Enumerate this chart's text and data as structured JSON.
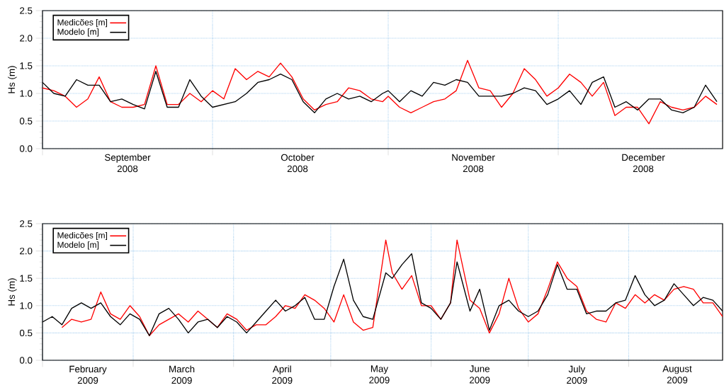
{
  "chart_data": [
    {
      "type": "line",
      "ylabel": "Hs (m)",
      "grid": true,
      "legend": "top left",
      "xlim": [
        "2008-09-01",
        "2008-12-30"
      ],
      "ylim": [
        0,
        2.5
      ],
      "yticks": [
        {
          "value": 0,
          "label": "0.0"
        },
        0.5,
        {
          "value": 1,
          "label": "1.0"
        },
        1.5,
        {
          "value": 2,
          "label": "2.0"
        },
        2.5
      ],
      "xticks": [
        {
          "value": "2008-09-01",
          "label": null
        },
        {
          "value": "2008-09-16",
          "label": "September 2008"
        },
        {
          "value": "2008-10-01",
          "label": null
        },
        {
          "value": "2008-10-16",
          "label": "October 2008"
        },
        {
          "value": "2008-11-01",
          "label": null
        },
        {
          "value": "2008-11-16",
          "label": "November 2008"
        },
        {
          "value": "2008-12-01",
          "label": null
        },
        {
          "value": "2008-12-16",
          "label": "December 2008"
        }
      ],
      "x": [
        "2008-09-01",
        "2008-09-03",
        "2008-09-05",
        "2008-09-07",
        "2008-09-09",
        "2008-09-11",
        "2008-09-13",
        "2008-09-15",
        "2008-09-17",
        "2008-09-19",
        "2008-09-21",
        "2008-09-23",
        "2008-09-25",
        "2008-09-27",
        "2008-09-29",
        "2008-10-01",
        "2008-10-03",
        "2008-10-05",
        "2008-10-07",
        "2008-10-09",
        "2008-10-11",
        "2008-10-13",
        "2008-10-15",
        "2008-10-17",
        "2008-10-19",
        "2008-10-21",
        "2008-10-23",
        "2008-10-25",
        "2008-10-27",
        "2008-10-29",
        "2008-10-31",
        "2008-11-01",
        "2008-11-03",
        "2008-11-05",
        "2008-11-07",
        "2008-11-09",
        "2008-11-11",
        "2008-11-13",
        "2008-11-15",
        "2008-11-17",
        "2008-11-19",
        "2008-11-21",
        "2008-11-23",
        "2008-11-25",
        "2008-11-27",
        "2008-11-29",
        "2008-12-01",
        "2008-12-03",
        "2008-12-05",
        "2008-12-07",
        "2008-12-09",
        "2008-12-11",
        "2008-12-13",
        "2008-12-15",
        "2008-12-17",
        "2008-12-19",
        "2008-12-21",
        "2008-12-23",
        "2008-12-25",
        "2008-12-27",
        "2008-12-29"
      ],
      "series": [
        {
          "name": "Medicões [m]",
          "color": "#ff0000",
          "values": [
            1.1,
            1.05,
            0.95,
            0.75,
            0.9,
            1.3,
            0.85,
            0.75,
            0.75,
            0.8,
            1.5,
            0.8,
            0.8,
            1.0,
            0.85,
            1.05,
            0.9,
            1.45,
            1.25,
            1.4,
            1.3,
            1.55,
            1.3,
            0.9,
            0.7,
            0.8,
            0.85,
            1.1,
            1.05,
            0.9,
            0.85,
            0.95,
            0.75,
            0.65,
            0.75,
            0.85,
            0.9,
            1.05,
            1.6,
            1.1,
            1.05,
            0.75,
            1.0,
            1.45,
            1.25,
            0.95,
            1.1,
            1.35,
            1.2,
            0.95,
            1.2,
            0.6,
            0.75,
            0.75,
            0.45,
            0.85,
            0.75,
            0.7,
            0.75,
            0.95,
            0.8
          ]
        },
        {
          "name": "Modelo [m]",
          "color": "#000000",
          "values": [
            1.2,
            1.0,
            0.95,
            1.25,
            1.15,
            1.15,
            0.85,
            0.9,
            0.8,
            0.72,
            1.4,
            0.75,
            0.75,
            1.25,
            0.95,
            0.75,
            0.8,
            0.85,
            1.0,
            1.2,
            1.25,
            1.35,
            1.25,
            0.85,
            0.65,
            0.9,
            1.0,
            0.9,
            0.95,
            0.85,
            1.0,
            1.05,
            0.85,
            1.05,
            0.95,
            1.2,
            1.15,
            1.25,
            1.2,
            0.95,
            0.95,
            0.95,
            1.0,
            1.1,
            1.05,
            0.8,
            0.9,
            1.05,
            0.8,
            1.2,
            1.3,
            0.75,
            0.85,
            0.7,
            0.9,
            0.9,
            0.7,
            0.65,
            0.75,
            1.15,
            0.85
          ]
        }
      ]
    },
    {
      "type": "line",
      "ylabel": "Hs (m)",
      "grid": true,
      "legend": "top left",
      "xlim": [
        "2009-02-01",
        "2009-08-30"
      ],
      "ylim": [
        0,
        2.5
      ],
      "yticks": [
        {
          "value": 0,
          "label": "0.0"
        },
        0.5,
        {
          "value": 1,
          "label": "1.0"
        },
        1.5,
        {
          "value": 2,
          "label": "2.0"
        },
        2.5
      ],
      "xticks": [
        {
          "value": "2009-02-01",
          "label": null
        },
        {
          "value": "2009-02-15",
          "label": "February 2009"
        },
        {
          "value": "2009-03-01",
          "label": null
        },
        {
          "value": "2009-03-16",
          "label": "March 2009"
        },
        {
          "value": "2009-04-01",
          "label": null
        },
        {
          "value": "2009-04-16",
          "label": "April 2009"
        },
        {
          "value": "2009-05-01",
          "label": null
        },
        {
          "value": "2009-05-16",
          "label": "May 2009"
        },
        {
          "value": "2009-06-01",
          "label": null
        },
        {
          "value": "2009-06-16",
          "label": "June 2009"
        },
        {
          "value": "2009-07-01",
          "label": null
        },
        {
          "value": "2009-07-16",
          "label": "July 2009"
        },
        {
          "value": "2009-08-01",
          "label": null
        },
        {
          "value": "2009-08-16",
          "label": "August 2009"
        }
      ],
      "x": [
        "2009-02-01",
        "2009-02-04",
        "2009-02-07",
        "2009-02-10",
        "2009-02-13",
        "2009-02-16",
        "2009-02-19",
        "2009-02-22",
        "2009-02-25",
        "2009-02-28",
        "2009-03-03",
        "2009-03-06",
        "2009-03-09",
        "2009-03-12",
        "2009-03-15",
        "2009-03-18",
        "2009-03-21",
        "2009-03-24",
        "2009-03-27",
        "2009-03-30",
        "2009-04-02",
        "2009-04-05",
        "2009-04-08",
        "2009-04-11",
        "2009-04-14",
        "2009-04-17",
        "2009-04-20",
        "2009-04-23",
        "2009-04-26",
        "2009-04-29",
        "2009-05-02",
        "2009-05-05",
        "2009-05-08",
        "2009-05-11",
        "2009-05-14",
        "2009-05-18",
        "2009-05-20",
        "2009-05-23",
        "2009-05-26",
        "2009-05-29",
        "2009-06-01",
        "2009-06-04",
        "2009-06-07",
        "2009-06-09",
        "2009-06-13",
        "2009-06-16",
        "2009-06-19",
        "2009-06-22",
        "2009-06-25",
        "2009-06-28",
        "2009-07-01",
        "2009-07-04",
        "2009-07-07",
        "2009-07-10",
        "2009-07-13",
        "2009-07-16",
        "2009-07-19",
        "2009-07-22",
        "2009-07-25",
        "2009-07-28",
        "2009-07-31",
        "2009-08-03",
        "2009-08-06",
        "2009-08-09",
        "2009-08-12",
        "2009-08-15",
        "2009-08-18",
        "2009-08-21",
        "2009-08-24",
        "2009-08-27",
        "2009-08-30"
      ],
      "series": [
        {
          "name": "Medicões [m]",
          "color": "#ff0000",
          "values": [
            null,
            null,
            0.6,
            0.75,
            0.7,
            0.75,
            1.25,
            0.85,
            0.75,
            1.0,
            0.8,
            0.45,
            0.65,
            0.75,
            0.85,
            0.7,
            0.9,
            0.75,
            0.6,
            0.85,
            0.75,
            0.55,
            0.65,
            0.65,
            0.8,
            1.0,
            0.95,
            1.2,
            1.1,
            0.95,
            0.7,
            1.2,
            0.7,
            0.55,
            0.6,
            2.2,
            1.6,
            1.3,
            1.55,
            1.0,
            1.0,
            0.75,
            1.05,
            2.2,
            1.1,
            0.95,
            0.5,
            0.85,
            1.5,
            0.95,
            0.7,
            0.85,
            1.3,
            1.8,
            1.5,
            1.35,
            0.9,
            0.75,
            0.7,
            1.05,
            0.95,
            1.2,
            1.05,
            1.2,
            1.1,
            1.3,
            1.35,
            1.3,
            1.05,
            1.05,
            0.8
          ]
        },
        {
          "name": "Modelo [m]",
          "color": "#000000",
          "values": [
            0.7,
            0.8,
            0.65,
            0.95,
            1.05,
            0.95,
            1.05,
            0.8,
            0.65,
            0.85,
            0.75,
            0.45,
            0.85,
            0.95,
            0.75,
            0.5,
            0.7,
            0.75,
            0.6,
            0.8,
            0.7,
            0.5,
            0.7,
            0.9,
            1.1,
            0.9,
            1.0,
            1.15,
            0.75,
            0.75,
            1.35,
            1.85,
            1.1,
            0.8,
            0.75,
            1.6,
            1.5,
            1.75,
            1.95,
            1.05,
            0.95,
            0.75,
            1.05,
            1.8,
            0.9,
            1.3,
            0.55,
            1.0,
            1.1,
            0.9,
            0.8,
            0.9,
            1.2,
            1.75,
            1.3,
            1.3,
            0.85,
            0.9,
            0.9,
            1.05,
            1.1,
            1.55,
            1.2,
            1.0,
            1.1,
            1.4,
            1.2,
            1.0,
            1.15,
            1.1,
            0.9
          ]
        }
      ]
    }
  ]
}
